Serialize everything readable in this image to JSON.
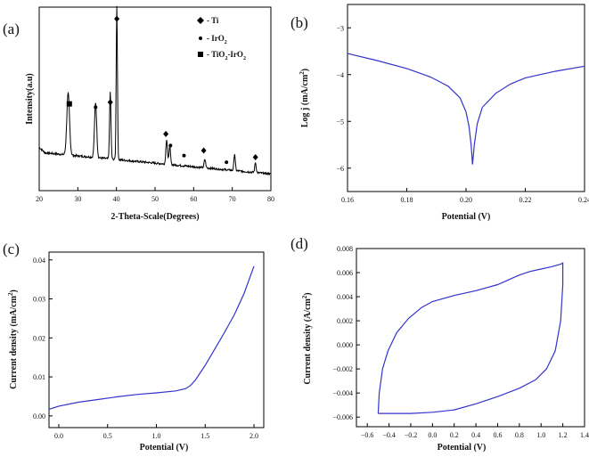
{
  "chart_data": [
    {
      "panel_label": "(a)",
      "type": "line",
      "xlabel": "2-Theta-Scale(Degrees)",
      "ylabel": "Intensity(a.u)",
      "xlim": [
        20,
        80
      ],
      "x_ticks": [
        20,
        30,
        40,
        50,
        60,
        70,
        80
      ],
      "y_ticks_shown": false,
      "color": "#000000",
      "line_width": "thin",
      "peaks": [
        {
          "x": 27.5,
          "height": 0.37,
          "width": 0.35
        },
        {
          "x": 34.6,
          "height": 0.33,
          "width": 0.28
        },
        {
          "x": 38.4,
          "height": 0.4,
          "width": 0.18
        },
        {
          "x": 40.1,
          "height": 0.92,
          "width": 0.16
        },
        {
          "x": 53.0,
          "height": 0.15,
          "width": 0.2
        },
        {
          "x": 53.8,
          "height": 0.11,
          "width": 0.2
        },
        {
          "x": 62.9,
          "height": 0.05,
          "width": 0.2
        },
        {
          "x": 70.6,
          "height": 0.1,
          "width": 0.18
        },
        {
          "x": 76.0,
          "height": 0.06,
          "width": 0.18
        }
      ],
      "baseline": {
        "start": 0.23,
        "end": 0.1
      },
      "markers": [
        {
          "x": 27.8,
          "y": 0.52,
          "symbol": "square"
        },
        {
          "x": 34.6,
          "y": 0.5,
          "symbol": "circle"
        },
        {
          "x": 38.4,
          "y": 0.53,
          "symbol": "diamond"
        },
        {
          "x": 40.1,
          "y": 1.03,
          "symbol": "diamond"
        },
        {
          "x": 52.8,
          "y": 0.34,
          "symbol": "diamond"
        },
        {
          "x": 54.0,
          "y": 0.27,
          "symbol": "circle"
        },
        {
          "x": 57.5,
          "y": 0.21,
          "symbol": "circle"
        },
        {
          "x": 62.6,
          "y": 0.24,
          "symbol": "diamond"
        },
        {
          "x": 68.5,
          "y": 0.17,
          "symbol": "circle"
        },
        {
          "x": 76.0,
          "y": 0.2,
          "symbol": "diamond"
        }
      ],
      "legend": [
        {
          "symbol": "diamond",
          "label": "- Ti"
        },
        {
          "symbol": "circle",
          "label": "- IrO",
          "sub": "2",
          "suffix": ""
        },
        {
          "symbol": "square",
          "label": "- TiO",
          "sub": "2",
          "suffix": "-IrO",
          "sub2": "2"
        }
      ]
    },
    {
      "panel_label": "(b)",
      "type": "line",
      "xlabel": "Potential (V)",
      "ylabel": "Log j (mA/cm2)",
      "xlim": [
        0.16,
        0.24
      ],
      "ylim": [
        -6.5,
        -2.5
      ],
      "x_ticks": [
        "0.16",
        "0.18",
        "0.20",
        "0.22",
        "0.24"
      ],
      "y_ticks": [
        "-3",
        "-4",
        "-5",
        "-6"
      ],
      "color": "#3333cc",
      "points": [
        [
          0.16,
          -3.55
        ],
        [
          0.17,
          -3.7
        ],
        [
          0.18,
          -3.87
        ],
        [
          0.188,
          -4.05
        ],
        [
          0.194,
          -4.25
        ],
        [
          0.198,
          -4.5
        ],
        [
          0.2,
          -4.8
        ],
        [
          0.201,
          -5.1
        ],
        [
          0.2017,
          -5.5
        ],
        [
          0.2022,
          -5.92
        ],
        [
          0.2028,
          -5.5
        ],
        [
          0.2038,
          -5.05
        ],
        [
          0.2055,
          -4.7
        ],
        [
          0.21,
          -4.4
        ],
        [
          0.215,
          -4.2
        ],
        [
          0.22,
          -4.07
        ],
        [
          0.23,
          -3.93
        ],
        [
          0.24,
          -3.82
        ]
      ]
    },
    {
      "panel_label": "(c)",
      "type": "line",
      "xlabel": "Potential (V)",
      "ylabel": "Current density (mA/cm2)",
      "xlim": [
        -0.1,
        2.1
      ],
      "ylim": [
        -0.003,
        0.042
      ],
      "x_ticks": [
        "0.0",
        "0.5",
        "1.0",
        "1.5",
        "2.0"
      ],
      "y_ticks": [
        "0.00",
        "0.01",
        "0.02",
        "0.03",
        "0.04"
      ],
      "color": "#3333cc",
      "points": [
        [
          -0.1,
          0.0017
        ],
        [
          0.0,
          0.0025
        ],
        [
          0.2,
          0.0035
        ],
        [
          0.4,
          0.0042
        ],
        [
          0.6,
          0.0049
        ],
        [
          0.8,
          0.0055
        ],
        [
          1.0,
          0.0059
        ],
        [
          1.2,
          0.0064
        ],
        [
          1.3,
          0.007
        ],
        [
          1.35,
          0.0078
        ],
        [
          1.4,
          0.0092
        ],
        [
          1.5,
          0.013
        ],
        [
          1.6,
          0.0172
        ],
        [
          1.7,
          0.0215
        ],
        [
          1.8,
          0.026
        ],
        [
          1.9,
          0.0315
        ],
        [
          2.0,
          0.0384
        ]
      ]
    },
    {
      "panel_label": "(d)",
      "type": "line",
      "xlabel": "Potential (V)",
      "ylabel": "Current density (A/cm2)",
      "xlim": [
        -0.7,
        1.4
      ],
      "ylim": [
        -0.0068,
        0.008
      ],
      "x_ticks": [
        "-0.6",
        "-0.4",
        "-0.2",
        "0.0",
        "0.2",
        "0.4",
        "0.6",
        "0.8",
        "1.0",
        "1.2",
        "1.4"
      ],
      "y_ticks": [
        "-0.006",
        "-0.004",
        "-0.002",
        "0.000",
        "0.002",
        "0.004",
        "0.006",
        "0.008"
      ],
      "color": "#3333cc",
      "points": [
        [
          -0.5,
          -0.0057
        ],
        [
          -0.49,
          -0.004
        ],
        [
          -0.46,
          -0.002
        ],
        [
          -0.41,
          -0.0005
        ],
        [
          -0.33,
          0.001
        ],
        [
          -0.22,
          0.0022
        ],
        [
          -0.1,
          0.0031
        ],
        [
          0.0,
          0.0036
        ],
        [
          0.2,
          0.0041
        ],
        [
          0.4,
          0.0045
        ],
        [
          0.6,
          0.005
        ],
        [
          0.8,
          0.0058
        ],
        [
          0.9,
          0.0061
        ],
        [
          1.0,
          0.0063
        ],
        [
          1.1,
          0.0065
        ],
        [
          1.18,
          0.0067
        ],
        [
          1.2,
          0.0068
        ],
        [
          1.2,
          0.005
        ],
        [
          1.18,
          0.002
        ],
        [
          1.13,
          -0.0005
        ],
        [
          1.05,
          -0.002
        ],
        [
          0.95,
          -0.0029
        ],
        [
          0.8,
          -0.0036
        ],
        [
          0.6,
          -0.0043
        ],
        [
          0.4,
          -0.0049
        ],
        [
          0.2,
          -0.0054
        ],
        [
          0.0,
          -0.0056
        ],
        [
          -0.2,
          -0.0057
        ],
        [
          -0.4,
          -0.0057
        ],
        [
          -0.5,
          -0.0057
        ]
      ]
    }
  ]
}
